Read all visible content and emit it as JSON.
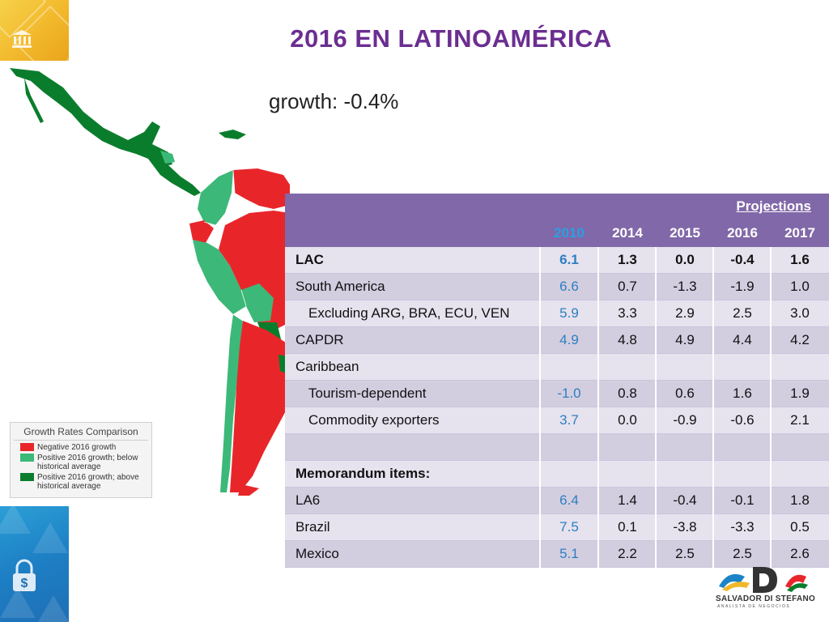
{
  "title": "2016 EN LATINOAMÉRICA",
  "growth_caption": "growth: -0.4%",
  "legend": {
    "title": "Growth Rates Comparison",
    "items": [
      {
        "label": "Negative 2016 growth",
        "color": "#e8262a"
      },
      {
        "label": "Positive 2016 growth; below historical average",
        "color": "#3cb878"
      },
      {
        "label": "Positive 2016 growth; above historical average",
        "color": "#0a7d2c"
      }
    ]
  },
  "table": {
    "projections_label": "Projections",
    "years": [
      "2010",
      "2014",
      "2015",
      "2016",
      "2017"
    ],
    "rows": [
      {
        "label": "LAC",
        "values": [
          "6.1",
          "1.3",
          "0.0",
          "-0.4",
          "1.6"
        ],
        "bold": true,
        "indent": false
      },
      {
        "label": "South America",
        "values": [
          "6.6",
          "0.7",
          "-1.3",
          "-1.9",
          "1.0"
        ],
        "bold": false,
        "indent": false
      },
      {
        "label": "Excluding ARG, BRA, ECU, VEN",
        "values": [
          "5.9",
          "3.3",
          "2.9",
          "2.5",
          "3.0"
        ],
        "bold": false,
        "indent": true
      },
      {
        "label": "CAPDR",
        "values": [
          "4.9",
          "4.8",
          "4.9",
          "4.4",
          "4.2"
        ],
        "bold": false,
        "indent": false
      },
      {
        "label": "Caribbean",
        "values": [
          "",
          "",
          "",
          "",
          ""
        ],
        "bold": false,
        "indent": false
      },
      {
        "label": "Tourism-dependent",
        "values": [
          "-1.0",
          "0.8",
          "0.6",
          "1.6",
          "1.9"
        ],
        "bold": false,
        "indent": true
      },
      {
        "label": "Commodity exporters",
        "values": [
          "3.7",
          "0.0",
          "-0.9",
          "-0.6",
          "2.1"
        ],
        "bold": false,
        "indent": true
      },
      {
        "label": "",
        "values": [
          "",
          "",
          "",
          "",
          ""
        ],
        "bold": false,
        "indent": false
      },
      {
        "label": "Memorandum items:",
        "values": [
          "",
          "",
          "",
          "",
          ""
        ],
        "bold": true,
        "indent": false
      },
      {
        "label": "LA6",
        "values": [
          "6.4",
          "1.4",
          "-0.4",
          "-0.1",
          "1.8"
        ],
        "bold": false,
        "indent": false
      },
      {
        "label": "Brazil",
        "values": [
          "7.5",
          "0.1",
          "-3.8",
          "-3.3",
          "0.5"
        ],
        "bold": false,
        "indent": false
      },
      {
        "label": "Mexico",
        "values": [
          "5.1",
          "2.2",
          "2.5",
          "2.5",
          "2.6"
        ],
        "bold": false,
        "indent": false
      }
    ]
  },
  "logo": {
    "brand": "SALVADOR DI STEFANO",
    "tagline": "ANALISTA DE NEGOCIOS"
  },
  "colors": {
    "title": "#6b2e91",
    "header": "#8168a8",
    "highlight_year": "#2b9fe3",
    "value_2010": "#2d7fc1"
  }
}
